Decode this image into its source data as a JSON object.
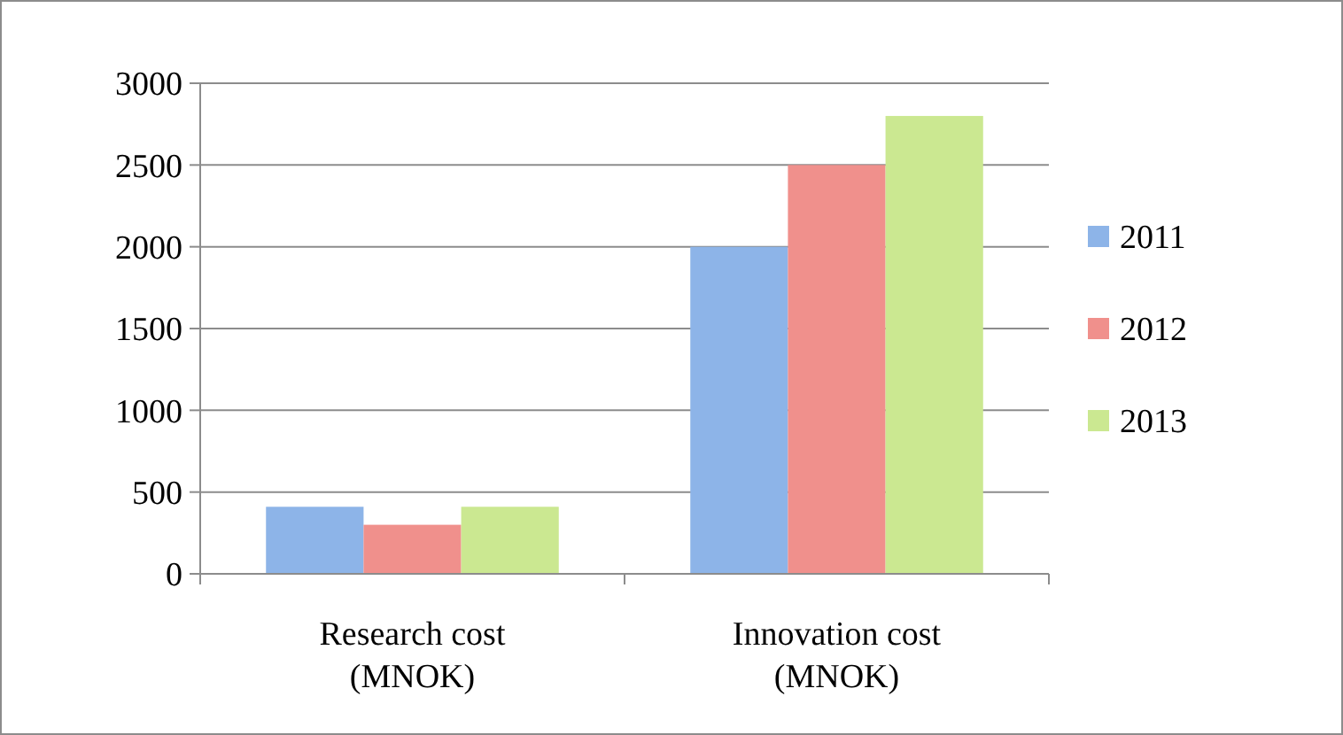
{
  "chart_data": {
    "type": "bar",
    "categories": [
      "Research cost (MNOK)",
      "Innovation cost (MNOK)"
    ],
    "series": [
      {
        "name": "2011",
        "color": "#8db4e8",
        "values": [
          410,
          2000
        ]
      },
      {
        "name": "2012",
        "color": "#f0908c",
        "values": [
          300,
          2500
        ]
      },
      {
        "name": "2013",
        "color": "#cbe891",
        "values": [
          410,
          2800
        ]
      }
    ],
    "ylim": [
      0,
      3000
    ],
    "yticks": [
      0,
      500,
      1000,
      1500,
      2000,
      2500,
      3000
    ],
    "grid": "y",
    "legend": "right"
  }
}
